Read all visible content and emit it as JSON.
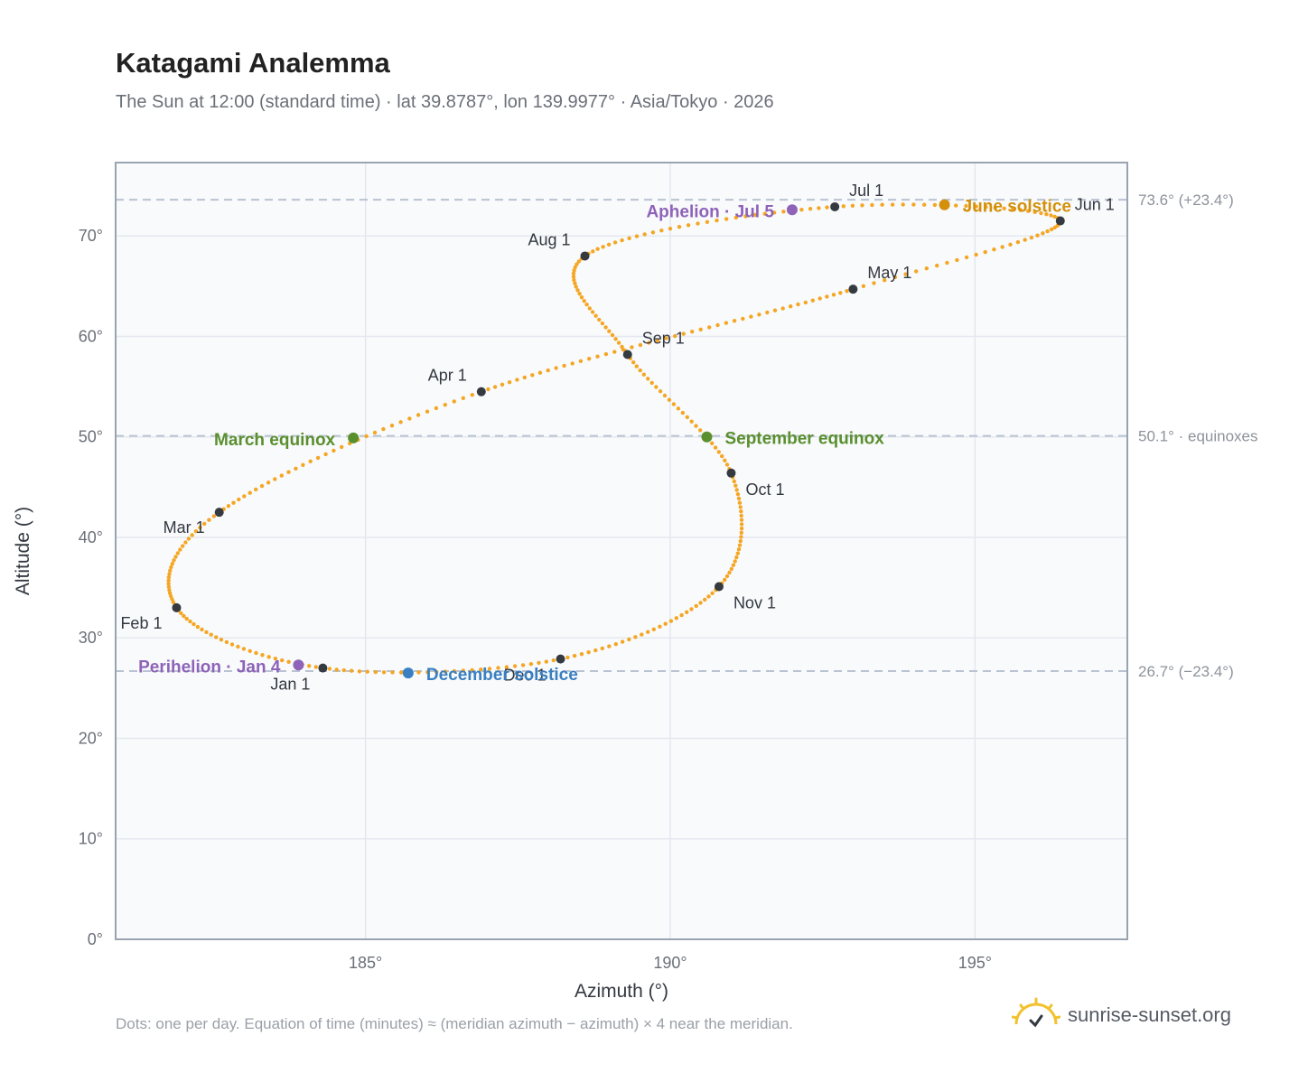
{
  "title": "Katagami Analemma",
  "subtitle": "The Sun at 12:00 (standard time) · lat 39.8787°, lon 139.9977° · Asia/Tokyo · 2026",
  "footnote": "Dots: one per day. Equation of time (minutes) ≈ (meridian azimuth − azimuth) × 4 near the meridian.",
  "brand": {
    "name": "sunrise-sunset.org",
    "icon": "sun-logo-icon"
  },
  "colors": {
    "path": "#f5a623",
    "month_marker": "#343a40",
    "equinox": "#5a8f2e",
    "june_solstice": "#d4900a",
    "december_solstice": "#3a7fc1",
    "apsis": "#8e63b8",
    "reference_line": "#b9c3d1",
    "plot_bg": "#f8fafc",
    "plot_border": "#9aa3b1",
    "grid": "#e4e8ee"
  },
  "chart_data": {
    "type": "scatter",
    "xlabel": "Azimuth (°)",
    "ylabel": "Altitude (°)",
    "xlim": [
      180.9,
      197.5
    ],
    "ylim": [
      0,
      77.3
    ],
    "xticks": [
      185,
      190,
      195
    ],
    "yticks": [
      0,
      10,
      20,
      30,
      40,
      50,
      60,
      70
    ],
    "tick_suffix": "°",
    "grid": true,
    "month_markers": [
      {
        "label": "Jan 1",
        "azimuth": 184.3,
        "altitude": 27.0
      },
      {
        "label": "Feb 1",
        "azimuth": 181.9,
        "altitude": 33.0
      },
      {
        "label": "Mar 1",
        "azimuth": 182.6,
        "altitude": 42.5
      },
      {
        "label": "Apr 1",
        "azimuth": 186.9,
        "altitude": 54.5
      },
      {
        "label": "May 1",
        "azimuth": 193.0,
        "altitude": 64.7
      },
      {
        "label": "Jun 1",
        "azimuth": 196.4,
        "altitude": 71.5
      },
      {
        "label": "Jul 1",
        "azimuth": 192.7,
        "altitude": 72.9
      },
      {
        "label": "Aug 1",
        "azimuth": 188.6,
        "altitude": 68.0
      },
      {
        "label": "Sep 1",
        "azimuth": 189.3,
        "altitude": 58.2
      },
      {
        "label": "Oct 1",
        "azimuth": 191.0,
        "altitude": 46.4
      },
      {
        "label": "Nov 1",
        "azimuth": 190.8,
        "altitude": 35.1
      },
      {
        "label": "Dec 1",
        "azimuth": 188.2,
        "altitude": 27.9
      }
    ],
    "events": [
      {
        "label": "March equinox",
        "azimuth": 184.8,
        "altitude": 49.9,
        "kind": "equinox"
      },
      {
        "label": "September equinox",
        "azimuth": 190.6,
        "altitude": 50.0,
        "kind": "equinox"
      },
      {
        "label": "June solstice",
        "azimuth": 194.5,
        "altitude": 73.1,
        "kind": "june"
      },
      {
        "label": "December solstice",
        "azimuth": 185.7,
        "altitude": 26.5,
        "kind": "december"
      },
      {
        "label": "Perihelion · Jan 4",
        "azimuth": 183.9,
        "altitude": 27.3,
        "kind": "apsis"
      },
      {
        "label": "Aphelion · Jul 5",
        "azimuth": 192.0,
        "altitude": 72.6,
        "kind": "apsis"
      }
    ],
    "reference_lines": [
      {
        "altitude": 73.6,
        "label": "73.6° (+23.4°)"
      },
      {
        "altitude": 50.1,
        "label": "50.1° · equinoxes"
      },
      {
        "altitude": 26.7,
        "label": "26.7° (−23.4°)"
      }
    ]
  }
}
